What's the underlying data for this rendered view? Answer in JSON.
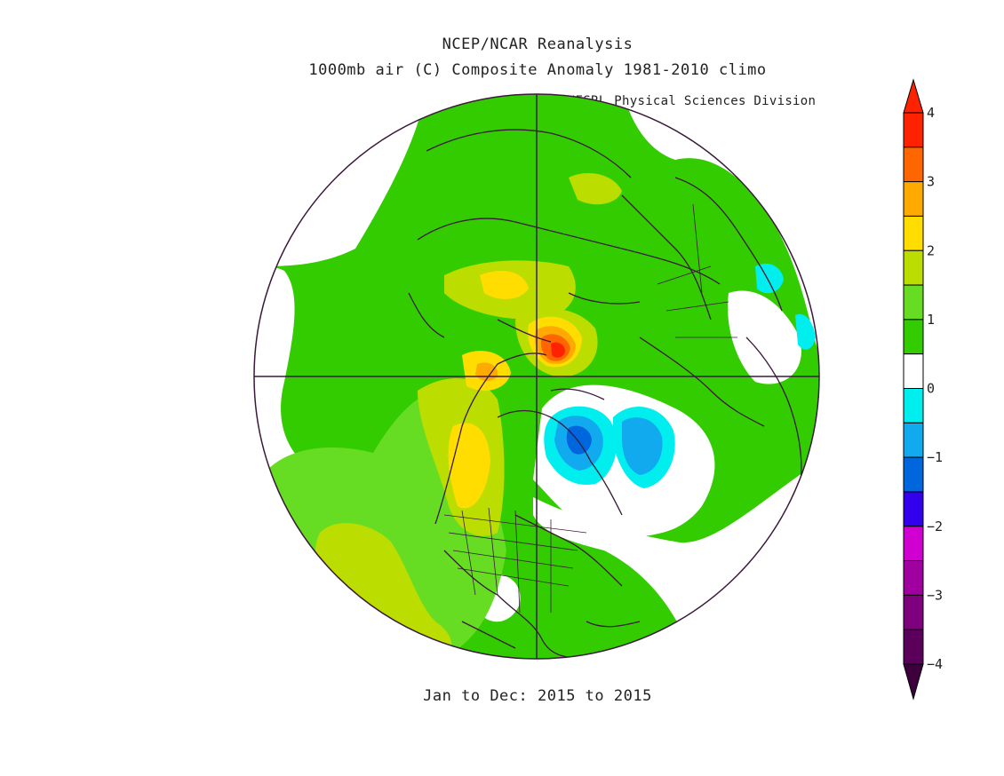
{
  "title_line1": "NCEP/NCAR Reanalysis",
  "title_line2": "1000mb air (C) Composite Anomaly 1981-2010 climo",
  "credit": "NOAA/ESRL Physical Sciences Division",
  "date_range": "Jan to Dec: 2015 to 2015",
  "colorbar": {
    "bins": [
      {
        "value": -4,
        "color": "#5a005a"
      },
      {
        "value": -3.5,
        "color": "#7f007f"
      },
      {
        "value": -3,
        "color": "#a000a0"
      },
      {
        "value": -2.5,
        "color": "#d000d0"
      },
      {
        "value": -2,
        "color": "#3300ee"
      },
      {
        "value": -1.5,
        "color": "#0066dd"
      },
      {
        "value": -1,
        "color": "#11aaee"
      },
      {
        "value": -0.5,
        "color": "#00eeee"
      },
      {
        "value": 0,
        "color": "#ffffff"
      },
      {
        "value": 0.5,
        "color": "#33cc00"
      },
      {
        "value": 1,
        "color": "#66dd22"
      },
      {
        "value": 1.5,
        "color": "#bbdd00"
      },
      {
        "value": 2,
        "color": "#ffdd00"
      },
      {
        "value": 2.5,
        "color": "#ffaa00"
      },
      {
        "value": 3,
        "color": "#ff6600"
      },
      {
        "value": 3.5,
        "color": "#ff2200"
      }
    ],
    "tick_labels": [
      "4",
      "3",
      "2",
      "1",
      "0",
      "−1",
      "−2",
      "−3",
      "−4"
    ]
  }
}
